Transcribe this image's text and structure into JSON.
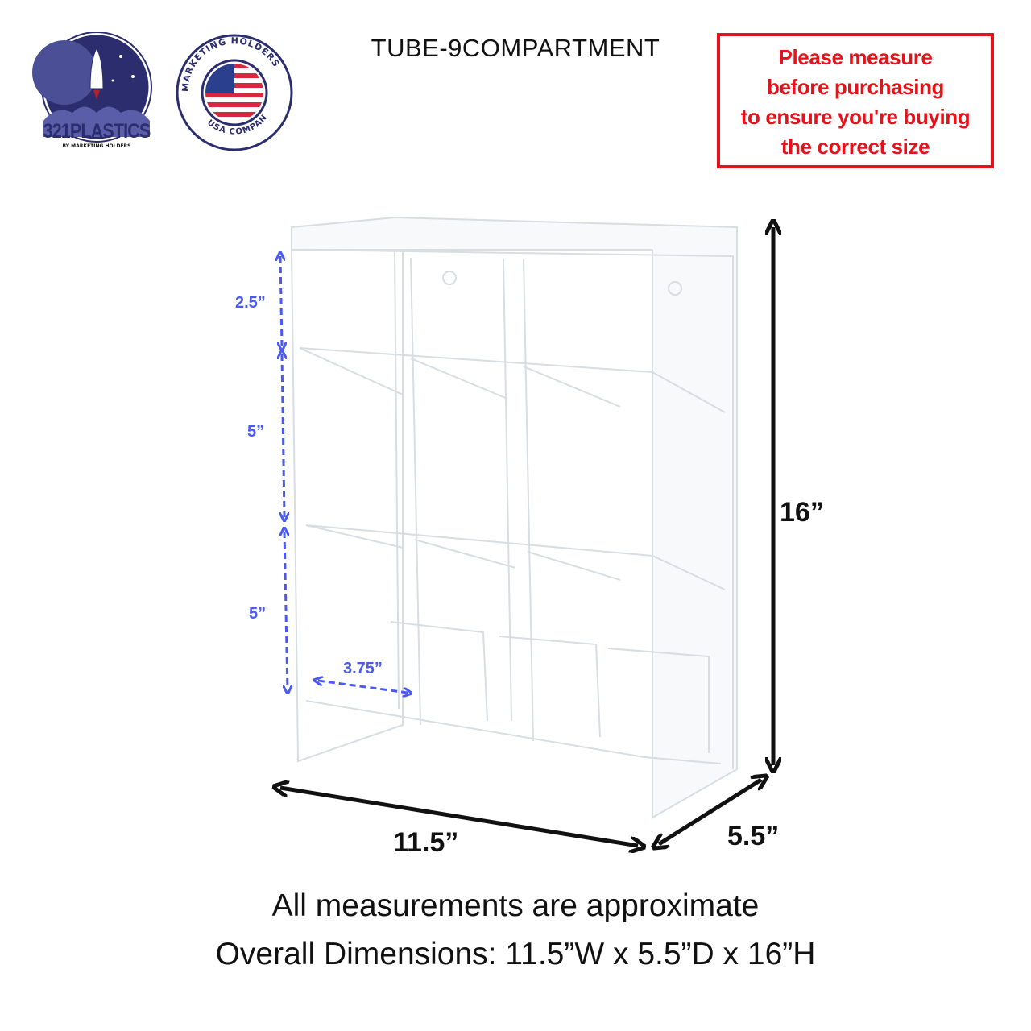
{
  "header": {
    "title": "TUBE-9COMPARTMENT",
    "logo_321plastics": {
      "main": "321PLASTICS",
      "sub": "BY MARKETING HOLDERS"
    },
    "logo_marketing_holders": {
      "top": "MARKETING HOLDERS",
      "bottom": "USA COMPANY"
    },
    "warning_lines": [
      "Please measure",
      "before purchasing",
      "to ensure you're buying",
      "the correct size"
    ]
  },
  "dimensions": {
    "height": "16”",
    "width": "11.5”",
    "depth": "5.5”",
    "top_section": "2.5”",
    "middle_section": "5”",
    "bottom_section": "5”",
    "compartment_width": "3.75”"
  },
  "footer": {
    "line1": "All measurements are approximate",
    "line2": "Overall Dimensions: 11.5”W x 5.5”D x 16”H"
  },
  "colors": {
    "warning": "#e4121b",
    "dimension_blue": "#4a5af0",
    "logo_navy": "#2b2d6e",
    "logo_red": "#b3202a"
  }
}
